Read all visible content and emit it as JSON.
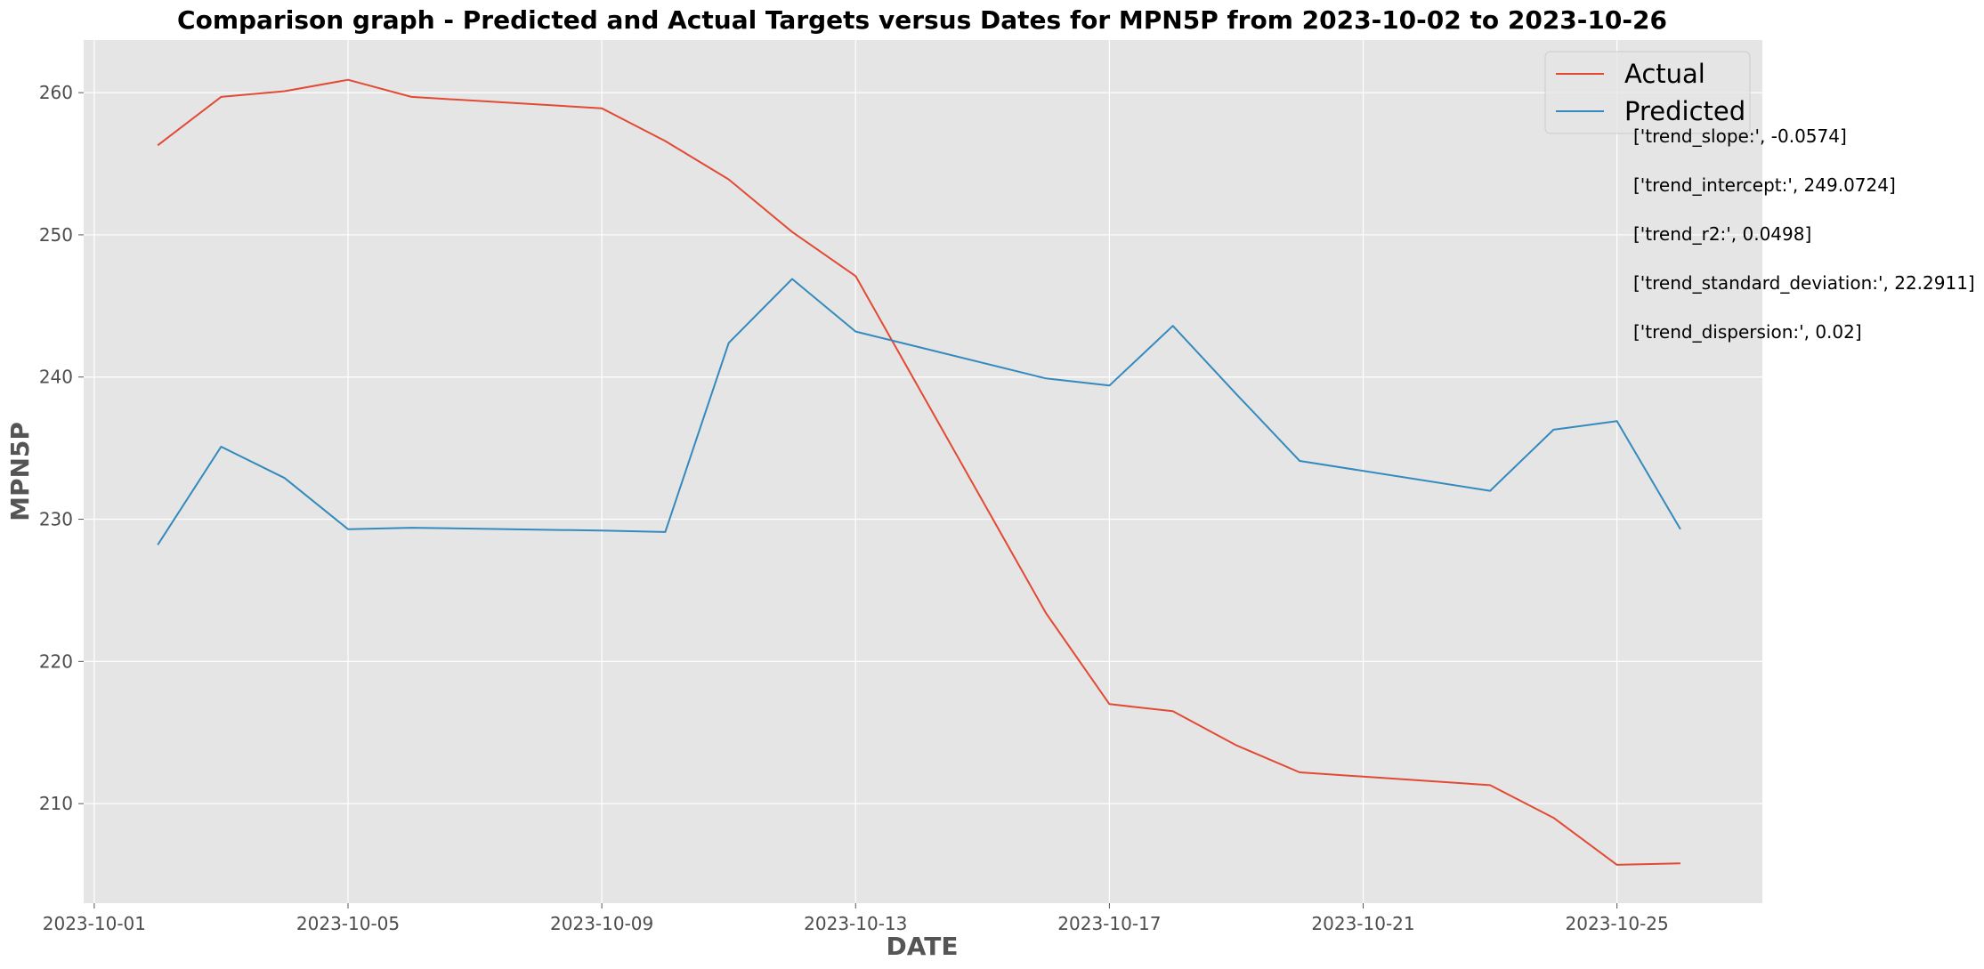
{
  "chart_data": {
    "type": "line",
    "title": "Comparison graph - Predicted and Actual Targets versus Dates for MPN5P from 2023-10-02 to 2023-10-26",
    "xlabel": "DATE",
    "ylabel": "MPN5P",
    "x_range": [
      "2023-09-30T20:00",
      "2023-10-27T07:00"
    ],
    "ylim": [
      203.0,
      263.7
    ],
    "x_ticks": [
      "2023-10-01",
      "2023-10-05",
      "2023-10-09",
      "2023-10-13",
      "2023-10-17",
      "2023-10-21",
      "2023-10-25"
    ],
    "y_ticks": [
      210,
      220,
      230,
      240,
      250,
      260
    ],
    "grid": true,
    "background": "#e5e5e5",
    "legend_position": "top-right",
    "x": [
      "2023-10-02",
      "2023-10-03",
      "2023-10-04",
      "2023-10-05",
      "2023-10-06",
      "2023-10-09",
      "2023-10-10",
      "2023-10-11",
      "2023-10-12",
      "2023-10-13",
      "2023-10-16",
      "2023-10-17",
      "2023-10-18",
      "2023-10-19",
      "2023-10-20",
      "2023-10-23",
      "2023-10-24",
      "2023-10-25",
      "2023-10-26"
    ],
    "series": [
      {
        "name": "Actual",
        "color": "#e24a33",
        "values": [
          256.3,
          259.7,
          260.1,
          260.9,
          259.7,
          258.9,
          256.6,
          253.9,
          250.2,
          247.1,
          223.4,
          217.0,
          216.5,
          214.1,
          212.2,
          211.3,
          209.0,
          205.7,
          205.8
        ]
      },
      {
        "name": "Predicted",
        "color": "#348abd",
        "values": [
          228.2,
          235.1,
          232.9,
          229.3,
          229.4,
          229.2,
          229.1,
          242.4,
          246.9,
          243.2,
          239.9,
          239.4,
          243.6,
          238.8,
          234.1,
          232.0,
          236.3,
          236.9,
          229.3
        ]
      }
    ],
    "annotations": [
      "['trend_slope:', -0.0574]",
      "['trend_intercept:', 249.0724]",
      "['trend_r2:', 0.0498]",
      "['trend_standard_deviation:', 22.2911]",
      "['trend_dispersion:', 0.02]"
    ]
  }
}
